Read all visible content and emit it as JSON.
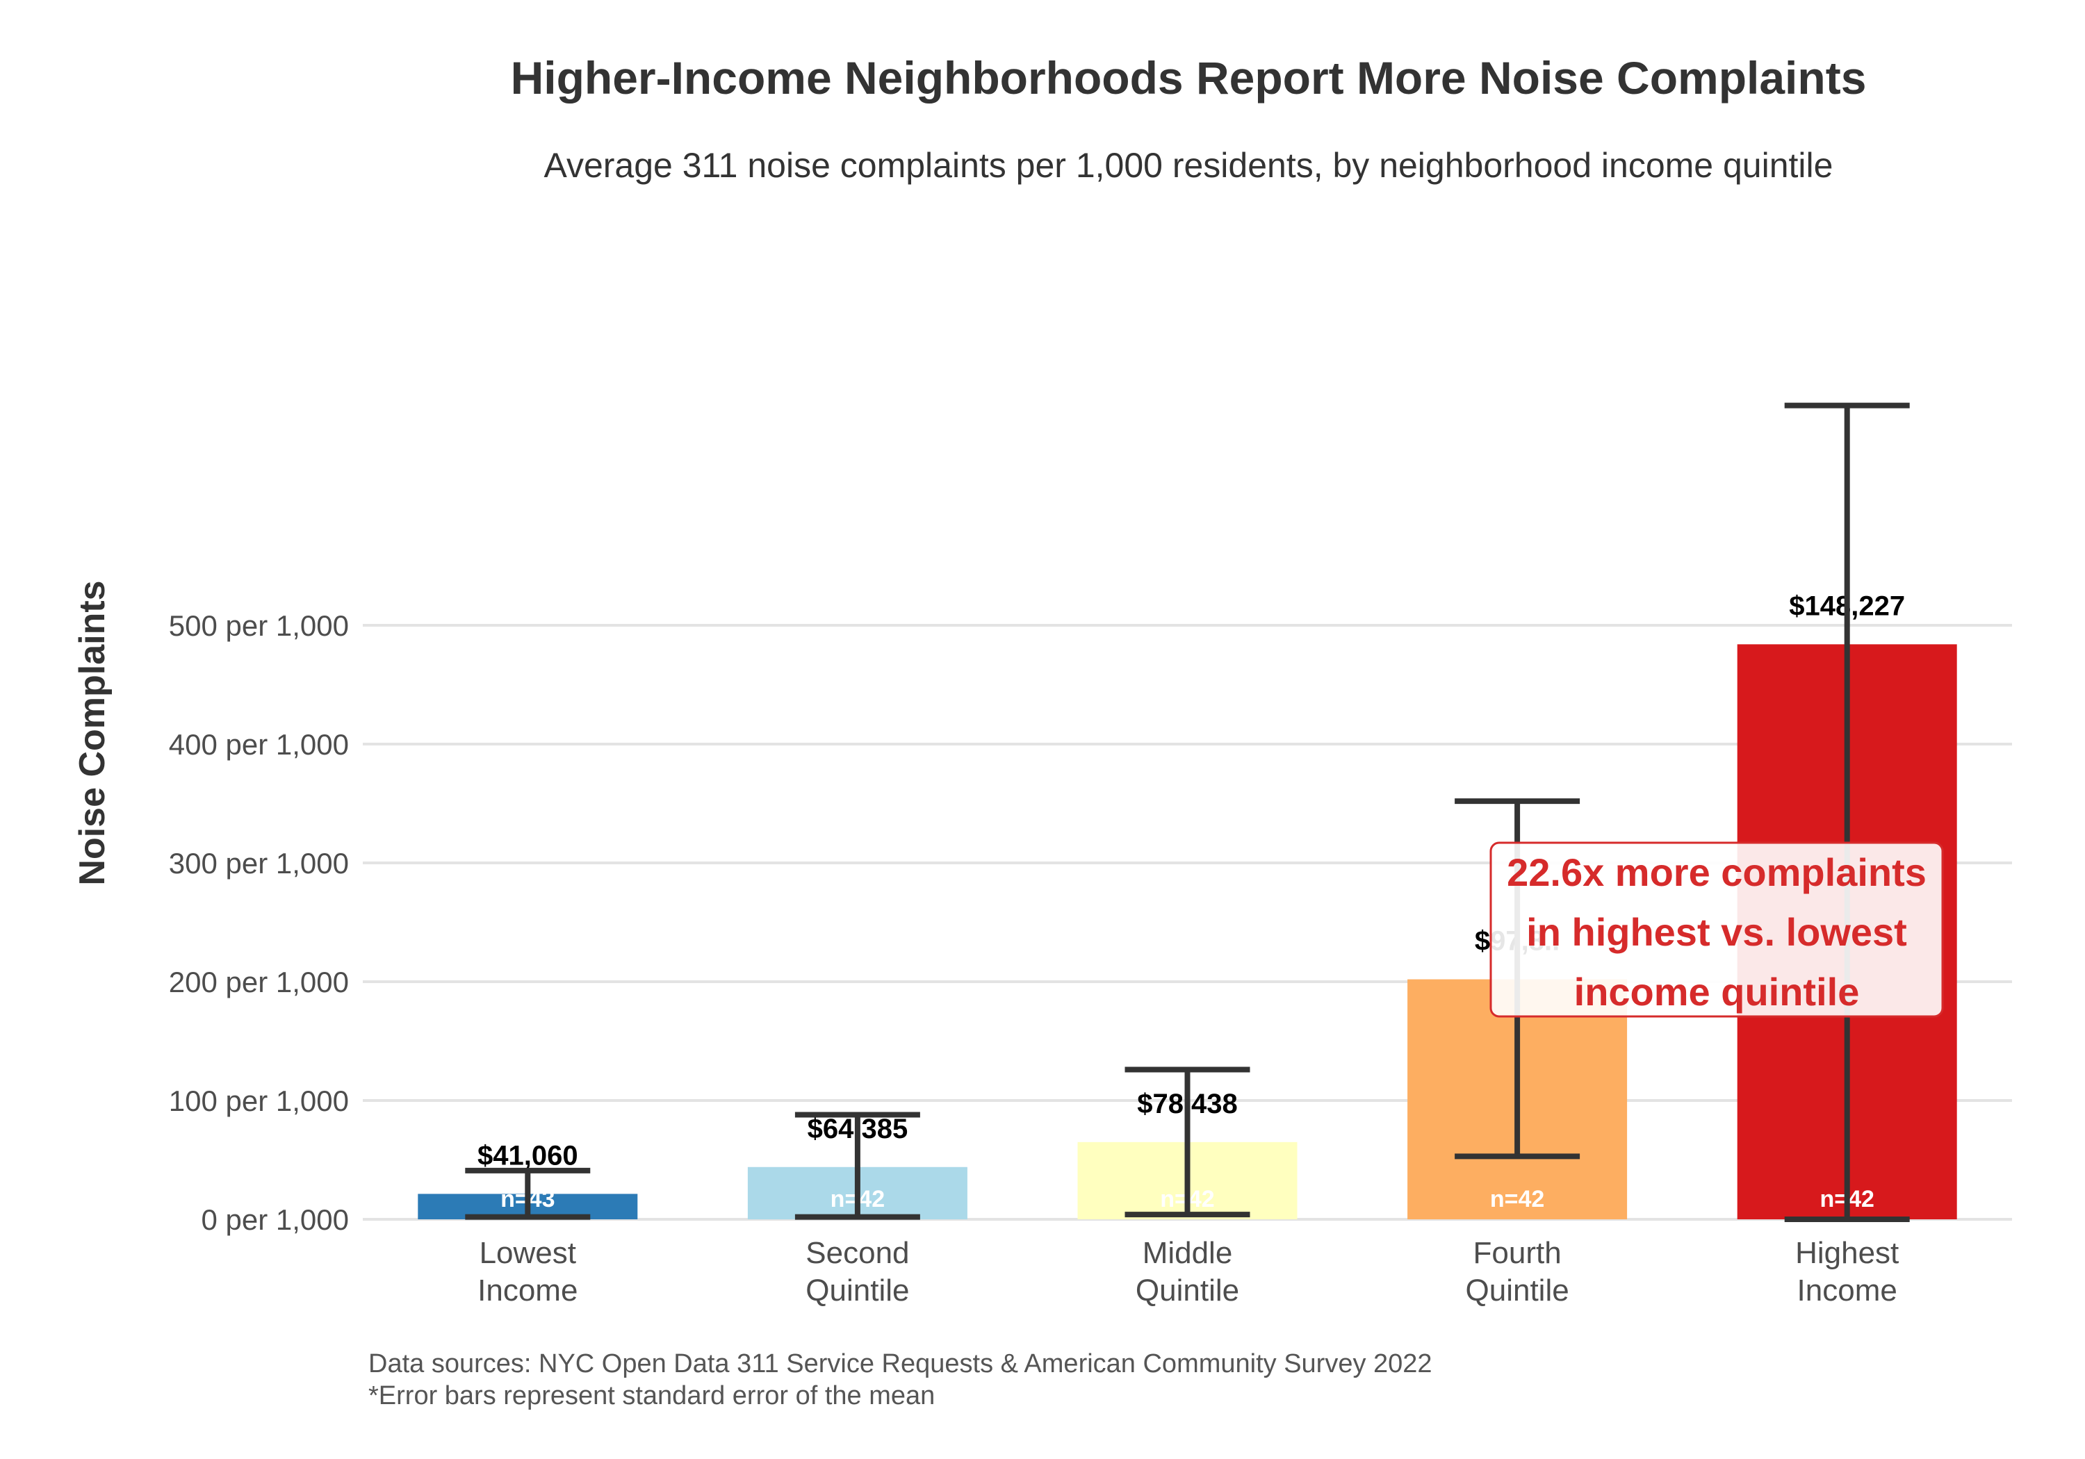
{
  "chart_data": {
    "type": "bar",
    "title": "Higher-Income Neighborhoods Report More Noise Complaints",
    "subtitle": "Average 311 noise complaints per 1,000 residents, by neighborhood income quintile",
    "ylabel": "Noise Complaints",
    "ylim": [
      0,
      620
    ],
    "yticks": [
      0,
      100,
      200,
      300,
      400,
      500
    ],
    "ytick_labels": [
      "0 per 1,000",
      "100 per 1,000",
      "200 per 1,000",
      "300 per 1,000",
      "400 per 1,000",
      "500 per 1,000"
    ],
    "grid": true,
    "categories": [
      [
        "Lowest",
        "Income"
      ],
      [
        "Second",
        "Quintile"
      ],
      [
        "Middle",
        "Quintile"
      ],
      [
        "Fourth",
        "Quintile"
      ],
      [
        "Highest",
        "Income"
      ]
    ],
    "values": [
      21.4,
      44.0,
      65.0,
      202.0,
      484.0
    ],
    "error_low": [
      2,
      2,
      4,
      53,
      0
    ],
    "error_high": [
      41,
      88,
      126,
      352,
      685
    ],
    "bar_labels": [
      "$41,060",
      "$64,385",
      "$78,438",
      "$97,8..",
      "$148,227"
    ],
    "n_labels": [
      "n=43",
      "n=42",
      "n=42",
      "n=42",
      "n=42"
    ],
    "colors": [
      "#2c7bb6",
      "#abd9e9",
      "#ffffbf",
      "#fdae61",
      "#d7191c"
    ],
    "annotation": [
      "22.6x more complaints",
      "in highest vs. lowest",
      "income quintile"
    ],
    "annotation_color": "#d62b2b",
    "source_lines": [
      "Data sources: NYC Open Data 311 Service Requests & American Community Survey 2022",
      "*Error bars represent standard error of the mean"
    ]
  }
}
